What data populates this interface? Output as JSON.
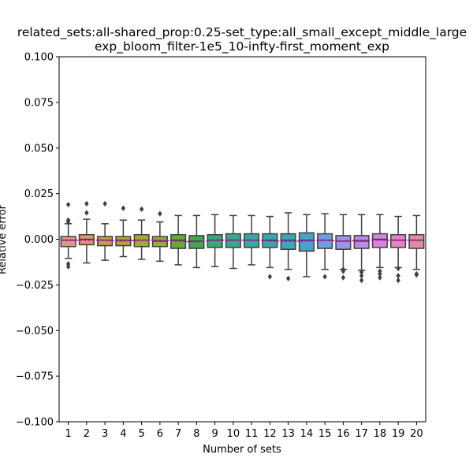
{
  "chart_data": {
    "type": "box",
    "title_line1": "related_sets:all-shared_prop:0.25-set_type:all_small_except_middle_large",
    "title_line2": "exp_bloom_filter-1e5_10-infty-first_moment_exp",
    "xlabel": "Number of sets",
    "ylabel": "Relative error",
    "ylim": [
      -0.1,
      0.1
    ],
    "yticks": [
      -0.1,
      -0.075,
      -0.05,
      -0.025,
      0.0,
      0.025,
      0.05,
      0.075,
      0.1
    ],
    "ytick_labels": [
      "−0.100",
      "−0.075",
      "−0.050",
      "−0.025",
      "0.000",
      "0.025",
      "0.050",
      "0.075",
      "0.100"
    ],
    "categories": [
      "1",
      "2",
      "3",
      "4",
      "5",
      "6",
      "7",
      "8",
      "9",
      "10",
      "11",
      "12",
      "13",
      "14",
      "15",
      "16",
      "17",
      "18",
      "19",
      "20"
    ],
    "mean_line_color": "#bf00bf",
    "boxes": [
      {
        "color": "#e1958b",
        "whislo": -0.0105,
        "q1": -0.004,
        "med": -0.0005,
        "q3": 0.0015,
        "whishi": 0.0085,
        "mean": -0.0005,
        "fliers": [
          0.019,
          0.0095,
          0.0105,
          -0.0135,
          -0.015
        ]
      },
      {
        "color": "#d99a6c",
        "whislo": -0.013,
        "q1": -0.003,
        "med": 0.0,
        "q3": 0.0025,
        "whishi": 0.011,
        "mean": -0.0005,
        "fliers": [
          0.0195,
          0.0145
        ]
      },
      {
        "color": "#c59e4a",
        "whislo": -0.0115,
        "q1": -0.0035,
        "med": -0.0005,
        "q3": 0.0015,
        "whishi": 0.0085,
        "mean": -0.0005,
        "fliers": [
          0.0195
        ]
      },
      {
        "color": "#b8a23a",
        "whislo": -0.0095,
        "q1": -0.0035,
        "med": -0.0005,
        "q3": 0.0015,
        "whishi": 0.0105,
        "mean": -0.001,
        "fliers": [
          0.017
        ]
      },
      {
        "color": "#a7a83a",
        "whislo": -0.011,
        "q1": -0.004,
        "med": -0.0005,
        "q3": 0.0025,
        "whishi": 0.0105,
        "mean": -0.0005,
        "fliers": [
          0.0165
        ]
      },
      {
        "color": "#96a93a",
        "whislo": -0.012,
        "q1": -0.004,
        "med": -0.001,
        "q3": 0.0015,
        "whishi": 0.0095,
        "mean": -0.0005,
        "fliers": [
          0.014
        ]
      },
      {
        "color": "#6aa83c",
        "whislo": -0.014,
        "q1": -0.005,
        "med": -0.0005,
        "q3": 0.0025,
        "whishi": 0.013,
        "mean": -0.001,
        "fliers": []
      },
      {
        "color": "#45a74c",
        "whislo": -0.0155,
        "q1": -0.005,
        "med": -0.001,
        "q3": 0.002,
        "whishi": 0.013,
        "mean": -0.0015,
        "fliers": []
      },
      {
        "color": "#3ba776",
        "whislo": -0.015,
        "q1": -0.0045,
        "med": -0.0005,
        "q3": 0.0025,
        "whishi": 0.0135,
        "mean": -0.0005,
        "fliers": []
      },
      {
        "color": "#3ba78d",
        "whislo": -0.016,
        "q1": -0.0045,
        "med": -0.0005,
        "q3": 0.003,
        "whishi": 0.013,
        "mean": -0.0005,
        "fliers": []
      },
      {
        "color": "#3ca79e",
        "whislo": -0.014,
        "q1": -0.0045,
        "med": -0.0005,
        "q3": 0.003,
        "whishi": 0.013,
        "mean": -0.0005,
        "fliers": []
      },
      {
        "color": "#3da6ab",
        "whislo": -0.0155,
        "q1": -0.0045,
        "med": -0.0005,
        "q3": 0.003,
        "whishi": 0.0125,
        "mean": -0.001,
        "fliers": [
          -0.0205
        ]
      },
      {
        "color": "#3ea5b8",
        "whislo": -0.0165,
        "q1": -0.0055,
        "med": -0.0005,
        "q3": 0.003,
        "whishi": 0.0145,
        "mean": -0.001,
        "fliers": [
          -0.0215
        ]
      },
      {
        "color": "#4aa2cc",
        "whislo": -0.0205,
        "q1": -0.0065,
        "med": -0.0005,
        "q3": 0.0035,
        "whishi": 0.0135,
        "mean": -0.001,
        "fliers": []
      },
      {
        "color": "#6c9ee0",
        "whislo": -0.0165,
        "q1": -0.005,
        "med": -0.0005,
        "q3": 0.003,
        "whishi": 0.014,
        "mean": -0.0005,
        "fliers": [
          -0.0205
        ]
      },
      {
        "color": "#9a95e8",
        "whislo": -0.0165,
        "q1": -0.0055,
        "med": -0.001,
        "q3": 0.002,
        "whishi": 0.0135,
        "mean": -0.001,
        "fliers": [
          -0.0165,
          -0.0175,
          -0.021
        ]
      },
      {
        "color": "#b68de6",
        "whislo": -0.017,
        "q1": -0.005,
        "med": -0.001,
        "q3": 0.002,
        "whishi": 0.0135,
        "mean": -0.0005,
        "fliers": [
          -0.018,
          -0.02,
          -0.0225
        ]
      },
      {
        "color": "#d487dc",
        "whislo": -0.0155,
        "q1": -0.0045,
        "med": 0.0,
        "q3": 0.003,
        "whishi": 0.0135,
        "mean": -0.0005,
        "fliers": [
          -0.0175,
          -0.019,
          -0.021
        ]
      },
      {
        "color": "#e087c3",
        "whislo": -0.0155,
        "q1": -0.0045,
        "med": -0.0005,
        "q3": 0.0025,
        "whishi": 0.0125,
        "mean": -0.0005,
        "fliers": [
          -0.016,
          -0.02,
          -0.0225
        ]
      },
      {
        "color": "#e48aa6",
        "whislo": -0.0165,
        "q1": -0.005,
        "med": -0.0005,
        "q3": 0.0025,
        "whishi": 0.013,
        "mean": -0.0005,
        "fliers": [
          -0.019,
          -0.0195
        ]
      }
    ]
  }
}
